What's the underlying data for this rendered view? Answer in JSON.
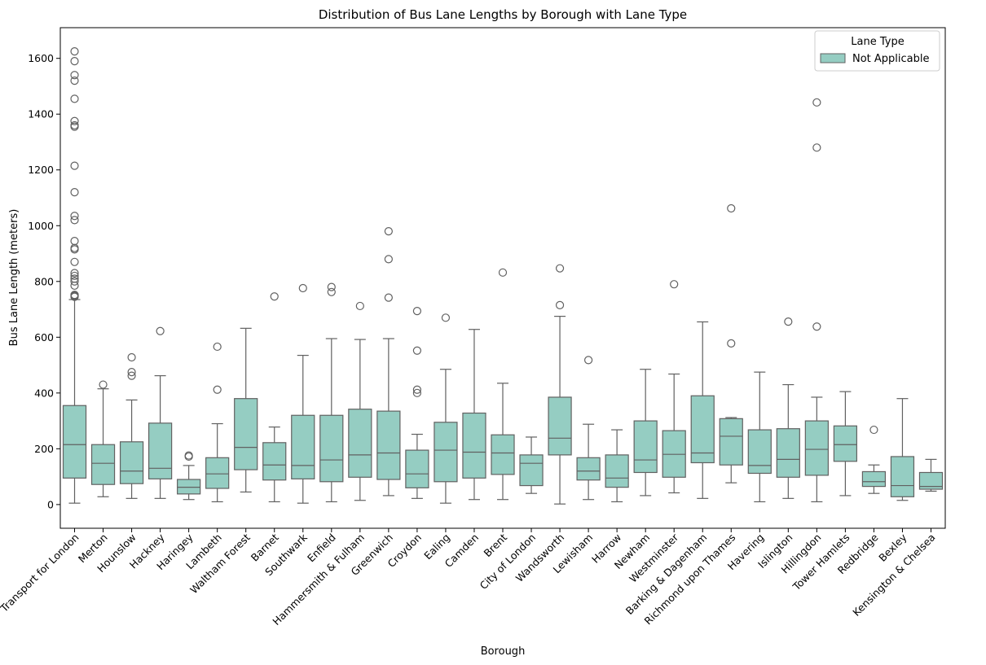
{
  "chart_data": {
    "type": "box",
    "title": "Distribution of Bus Lane Lengths by Borough with Lane Type",
    "xlabel": "Borough",
    "ylabel": "Bus Lane Length (meters)",
    "ylim": [
      -85,
      1710
    ],
    "yticks": [
      0,
      200,
      400,
      600,
      800,
      1000,
      1200,
      1400,
      1600
    ],
    "legend": {
      "title": "Lane Type",
      "position": "top-right",
      "entries": [
        "Not Applicable"
      ]
    },
    "colors": {
      "box_fill": "#95cdc2",
      "box_stroke": "#616161"
    },
    "categories": [
      "Transport for London",
      "Merton",
      "Hounslow",
      "Hackney",
      "Haringey",
      "Lambeth",
      "Waltham Forest",
      "Barnet",
      "Southwark",
      "Enfield",
      "Hammersmith & Fulham",
      "Greenwich",
      "Croydon",
      "Ealing",
      "Camden",
      "Brent",
      "City of London",
      "Wandsworth",
      "Lewisham",
      "Harrow",
      "Newham",
      "Westminster",
      "Barking & Dagenham",
      "Richmond upon Thames",
      "Havering",
      "Islington",
      "Hillingdon",
      "Tower Hamlets",
      "Redbridge",
      "Bexley",
      "Kensington & Chelsea"
    ],
    "series": [
      {
        "name": "Not Applicable",
        "boxes": [
          {
            "whislo": 5,
            "q1": 95,
            "med": 215,
            "q3": 355,
            "whishi": 735,
            "fliers": [
              745,
              748,
              750,
              752,
              785,
              800,
              810,
              820,
              830,
              870,
              915,
              920,
              945,
              1020,
              1035,
              1120,
              1215,
              1355,
              1360,
              1375,
              1455,
              1520,
              1540,
              1590,
              1625
            ]
          },
          {
            "whislo": 28,
            "q1": 72,
            "med": 148,
            "q3": 215,
            "whishi": 415,
            "fliers": [
              430
            ]
          },
          {
            "whislo": 22,
            "q1": 75,
            "med": 120,
            "q3": 225,
            "whishi": 375,
            "fliers": [
              462,
              475,
              528
            ]
          },
          {
            "whislo": 22,
            "q1": 92,
            "med": 130,
            "q3": 292,
            "whishi": 462,
            "fliers": [
              622
            ]
          },
          {
            "whislo": 18,
            "q1": 38,
            "med": 62,
            "q3": 90,
            "whishi": 140,
            "fliers": [
              172,
              176
            ]
          },
          {
            "whislo": 10,
            "q1": 58,
            "med": 110,
            "q3": 168,
            "whishi": 290,
            "fliers": [
              412,
              566
            ]
          },
          {
            "whislo": 45,
            "q1": 125,
            "med": 205,
            "q3": 380,
            "whishi": 632,
            "fliers": []
          },
          {
            "whislo": 10,
            "q1": 88,
            "med": 142,
            "q3": 222,
            "whishi": 278,
            "fliers": [
              746
            ]
          },
          {
            "whislo": 5,
            "q1": 92,
            "med": 140,
            "q3": 320,
            "whishi": 535,
            "fliers": [
              776
            ]
          },
          {
            "whislo": 10,
            "q1": 82,
            "med": 160,
            "q3": 320,
            "whishi": 595,
            "fliers": [
              762,
              780
            ]
          },
          {
            "whislo": 15,
            "q1": 98,
            "med": 178,
            "q3": 342,
            "whishi": 592,
            "fliers": [
              712
            ]
          },
          {
            "whislo": 32,
            "q1": 90,
            "med": 185,
            "q3": 335,
            "whishi": 595,
            "fliers": [
              742,
              880,
              980
            ]
          },
          {
            "whislo": 22,
            "q1": 60,
            "med": 110,
            "q3": 195,
            "whishi": 252,
            "fliers": [
              400,
              412,
              552,
              694
            ]
          },
          {
            "whislo": 5,
            "q1": 82,
            "med": 195,
            "q3": 295,
            "whishi": 485,
            "fliers": [
              670
            ]
          },
          {
            "whislo": 18,
            "q1": 95,
            "med": 188,
            "q3": 328,
            "whishi": 628,
            "fliers": []
          },
          {
            "whislo": 18,
            "q1": 108,
            "med": 185,
            "q3": 250,
            "whishi": 435,
            "fliers": [
              832
            ]
          },
          {
            "whislo": 40,
            "q1": 68,
            "med": 148,
            "q3": 178,
            "whishi": 242,
            "fliers": []
          },
          {
            "whislo": 2,
            "q1": 178,
            "med": 238,
            "q3": 385,
            "whishi": 675,
            "fliers": [
              715,
              847
            ]
          },
          {
            "whislo": 18,
            "q1": 88,
            "med": 120,
            "q3": 168,
            "whishi": 288,
            "fliers": [
              518
            ]
          },
          {
            "whislo": 10,
            "q1": 62,
            "med": 95,
            "q3": 178,
            "whishi": 268,
            "fliers": []
          },
          {
            "whislo": 32,
            "q1": 115,
            "med": 160,
            "q3": 300,
            "whishi": 485,
            "fliers": []
          },
          {
            "whislo": 42,
            "q1": 98,
            "med": 180,
            "q3": 265,
            "whishi": 468,
            "fliers": [
              790
            ]
          },
          {
            "whislo": 22,
            "q1": 150,
            "med": 185,
            "q3": 390,
            "whishi": 655,
            "fliers": []
          },
          {
            "whislo": 78,
            "q1": 142,
            "med": 245,
            "q3": 308,
            "whishi": 312,
            "fliers": [
              578,
              1062
            ]
          },
          {
            "whislo": 10,
            "q1": 112,
            "med": 140,
            "q3": 268,
            "whishi": 475,
            "fliers": []
          },
          {
            "whislo": 22,
            "q1": 98,
            "med": 162,
            "q3": 272,
            "whishi": 430,
            "fliers": [
              656
            ]
          },
          {
            "whislo": 10,
            "q1": 105,
            "med": 198,
            "q3": 300,
            "whishi": 385,
            "fliers": [
              638,
              1280,
              1442
            ]
          },
          {
            "whislo": 32,
            "q1": 155,
            "med": 215,
            "q3": 282,
            "whishi": 405,
            "fliers": []
          },
          {
            "whislo": 40,
            "q1": 65,
            "med": 82,
            "q3": 118,
            "whishi": 142,
            "fliers": [
              268
            ]
          },
          {
            "whislo": 15,
            "q1": 28,
            "med": 68,
            "q3": 172,
            "whishi": 380,
            "fliers": []
          },
          {
            "whislo": 48,
            "q1": 55,
            "med": 65,
            "q3": 115,
            "whishi": 162,
            "fliers": []
          }
        ]
      }
    ]
  }
}
